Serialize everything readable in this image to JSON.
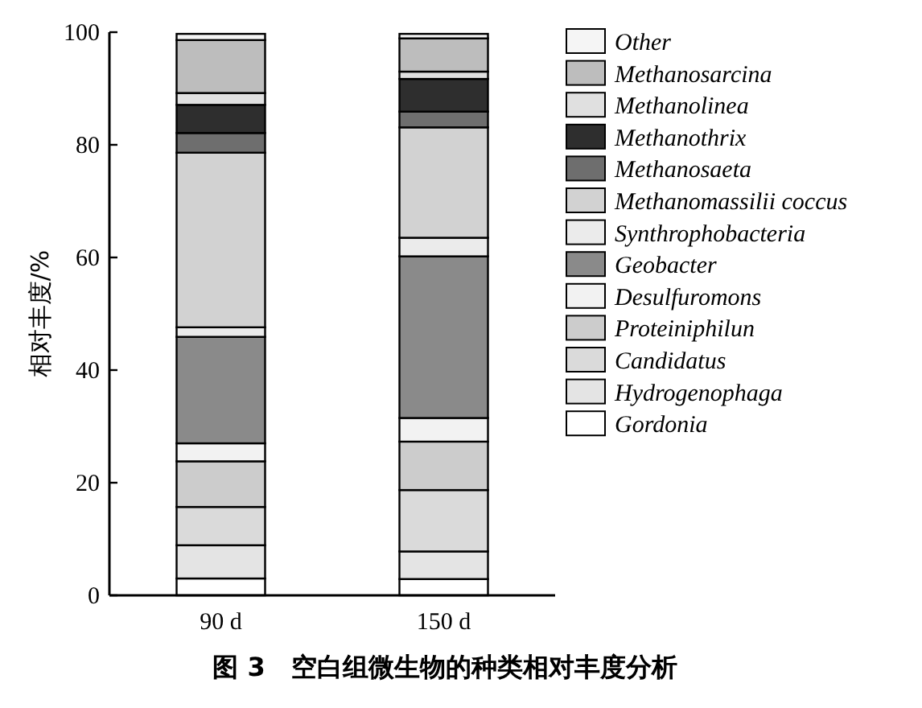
{
  "chart_data": {
    "type": "bar",
    "stacked": true,
    "title": "图 3　空白组微生物的种类相对丰度分析",
    "ylabel": "相对丰度/%",
    "categories": [
      "90 d",
      "150 d"
    ],
    "ylim": [
      0,
      100
    ],
    "yticks": [
      0,
      20,
      40,
      60,
      80,
      100
    ],
    "legend": "right",
    "grid": false,
    "series": [
      {
        "name": "Gordonia",
        "color": "#ffffff",
        "values": [
          3.0,
          2.9
        ]
      },
      {
        "name": "Hydrogenophaga",
        "color": "#e4e4e4",
        "values": [
          5.9,
          4.9
        ]
      },
      {
        "name": "Candidatus",
        "color": "#dadada",
        "values": [
          6.8,
          10.9
        ]
      },
      {
        "name": "Proteiniphilun",
        "color": "#cccccc",
        "values": [
          8.1,
          8.6
        ]
      },
      {
        "name": "Desulfuromons",
        "color": "#f2f2f2",
        "values": [
          3.2,
          4.2
        ]
      },
      {
        "name": "Geobacter",
        "color": "#8a8a8a",
        "values": [
          18.9,
          28.7
        ]
      },
      {
        "name": "Synthrophobacteria",
        "color": "#ebebeb",
        "values": [
          1.7,
          3.3
        ]
      },
      {
        "name": "Methanomassilii coccus",
        "color": "#d2d2d2",
        "values": [
          31.0,
          19.6
        ]
      },
      {
        "name": "Methanosaeta",
        "color": "#6e6e6e",
        "values": [
          3.5,
          2.8
        ]
      },
      {
        "name": "Methanothrix",
        "color": "#2e2e2e",
        "values": [
          5.0,
          5.8
        ]
      },
      {
        "name": "Methanolinea",
        "color": "#e0e0e0",
        "values": [
          2.1,
          1.3
        ]
      },
      {
        "name": "Methanosarcina",
        "color": "#bdbdbd",
        "values": [
          9.4,
          5.9
        ]
      },
      {
        "name": "Other",
        "color": "#f5f5f5",
        "values": [
          1.1,
          0.8
        ]
      }
    ]
  }
}
